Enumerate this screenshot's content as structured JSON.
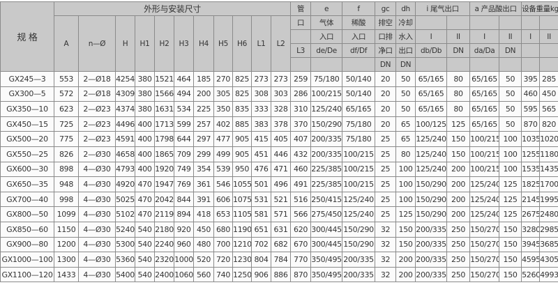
{
  "header": {
    "spec": "规 格",
    "group_title": "外形与安装尺寸",
    "dims": [
      "A",
      "n—Ø",
      "H",
      "H1",
      "H2",
      "H3",
      "H4",
      "H5",
      "H6",
      "L1",
      "L2"
    ],
    "pipe": [
      "管",
      "口",
      "",
      "L3",
      ""
    ],
    "e": [
      "e",
      "气体",
      "入口",
      "de/De",
      ""
    ],
    "f": [
      "f",
      "稀酸",
      "入口",
      "df/Df",
      ""
    ],
    "gc": [
      "gc",
      "排空",
      "口排",
      "净口",
      "DN"
    ],
    "dh": [
      "dh",
      "冷却",
      "水入",
      "出口",
      "DN"
    ],
    "i_title": "i 尾气出口",
    "i_sub": [
      "I",
      "II"
    ],
    "i_units": [
      "db/Db",
      "DN"
    ],
    "a_title": "a 产品酸出口",
    "a_sub": [
      "I",
      "II"
    ],
    "a_units": [
      "da/Da",
      "DN"
    ],
    "w_title": "设备重量kg",
    "w_sub": [
      "I",
      "II"
    ]
  },
  "rows": [
    [
      "GX245—3",
      "553",
      "2—Ø18",
      "4254",
      "380",
      "1521",
      "464",
      "185",
      "270",
      "825",
      "273",
      "273",
      "259",
      "75/180",
      "50/140",
      "20",
      "50",
      "65/165",
      "80",
      "65/165",
      "50",
      "395",
      "285"
    ],
    [
      "GX300—5",
      "572",
      "2—Ø18",
      "4309",
      "380",
      "1566",
      "494",
      "200",
      "305",
      "825",
      "308",
      "303",
      "286",
      "100/215",
      "50/140",
      "20",
      "50",
      "65/165",
      "80",
      "65/165",
      "50",
      "460",
      "450"
    ],
    [
      "GX350—10",
      "623",
      "2—Ø23",
      "4374",
      "380",
      "1631",
      "534",
      "225",
      "350",
      "835",
      "333",
      "328",
      "310",
      "125/240",
      "65/165",
      "20",
      "50",
      "65/165",
      "80",
      "65/165",
      "50",
      "595",
      "565"
    ],
    [
      "GX450—15",
      "725",
      "2—Ø23",
      "4496",
      "400",
      "1713",
      "599",
      "257",
      "402",
      "885",
      "383",
      "378",
      "370",
      "150/290",
      "75/180",
      "20",
      "65",
      "100/125",
      "125",
      "65/165",
      "50",
      "870",
      "820"
    ],
    [
      "GX500—20",
      "775",
      "2—Ø23",
      "4591",
      "400",
      "1798",
      "644",
      "297",
      "477",
      "905",
      "415",
      "405",
      "407",
      "200/335",
      "75/180",
      "25",
      "65",
      "125/240",
      "150",
      "100/215",
      "100",
      "1035",
      "1020"
    ],
    [
      "GX550—25",
      "826",
      "2—Ø30",
      "4658",
      "400",
      "1865",
      "709",
      "299",
      "499",
      "905",
      "451",
      "446",
      "432",
      "200/335",
      "100/215",
      "25",
      "80",
      "125/240",
      "150",
      "100/215",
      "100",
      "1255",
      "1180"
    ],
    [
      "GX600—30",
      "898",
      "4—Ø30",
      "4793",
      "400",
      "1920",
      "749",
      "354",
      "539",
      "950",
      "476",
      "471",
      "460",
      "225/385",
      "100/215",
      "25",
      "100",
      "125/240",
      "200",
      "100/215",
      "100",
      "1535",
      "1435"
    ],
    [
      "GX650—35",
      "948",
      "4—Ø30",
      "4920",
      "470",
      "1947",
      "769",
      "361",
      "546",
      "1055",
      "501",
      "496",
      "491",
      "225/385",
      "100/215",
      "25",
      "100",
      "150/290",
      "200",
      "125/240",
      "125",
      "1825",
      "1700"
    ],
    [
      "GX700—40",
      "998",
      "4—Ø30",
      "5025",
      "470",
      "2042",
      "844",
      "391",
      "606",
      "1075",
      "531",
      "521",
      "516",
      "250/415",
      "125/240",
      "25",
      "100",
      "150/290",
      "200",
      "125/240",
      "125",
      "2145",
      "1995"
    ],
    [
      "GX800—50",
      "1099",
      "4—Ø30",
      "5102",
      "470",
      "2119",
      "894",
      "418",
      "653",
      "1105",
      "581",
      "571",
      "566",
      "275/450",
      "125/240",
      "25",
      "125",
      "150/290",
      "200",
      "125/240",
      "125",
      "2675",
      "2480"
    ],
    [
      "GX850—60",
      "1150",
      "4—Ø30",
      "5240",
      "540",
      "2180",
      "920",
      "450",
      "680",
      "1190",
      "651",
      "631",
      "620",
      "300/445",
      "150/290",
      "32",
      "150",
      "200/335",
      "250",
      "150/270",
      "150",
      "3280",
      "2985"
    ],
    [
      "GX900—80",
      "1200",
      "4—Ø30",
      "5300",
      "540",
      "2240",
      "960",
      "480",
      "700",
      "1210",
      "702",
      "682",
      "670",
      "300/445",
      "150/290",
      "32",
      "150",
      "200/335",
      "250",
      "150/270",
      "150",
      "3945",
      "3685"
    ],
    [
      "GX1000—100",
      "1300",
      "4—Ø30",
      "5360",
      "540",
      "2320",
      "1000",
      "520",
      "720",
      "1230",
      "804",
      "784",
      "770",
      "350/495",
      "200/335",
      "32",
      "200",
      "200/335",
      "250",
      "150/270",
      "150",
      "4595",
      "4305"
    ],
    [
      "GX1100—120",
      "1433",
      "4—Ø30",
      "5400",
      "540",
      "2400",
      "1060",
      "560",
      "740",
      "1250",
      "906",
      "886",
      "870",
      "350/495",
      "200/335",
      "32",
      "200",
      "200/335",
      "250",
      "150/270",
      "150",
      "5260",
      "4993"
    ]
  ]
}
